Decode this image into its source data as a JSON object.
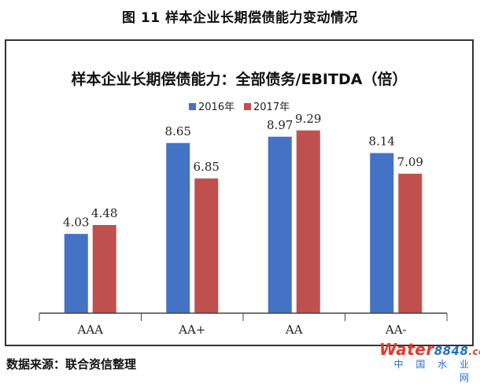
{
  "figure_title": "图 11    样本企业长期偿债能力变动情况",
  "source": "数据来源：联合资信整理",
  "watermark": {
    "brand": "Water",
    "digits": "8848",
    "suffix": ".com",
    "sub": "中 国 水 业 网"
  },
  "chart_data": {
    "type": "bar",
    "title": "样本企业长期偿债能力：全部债务/EBITDA（倍）",
    "categories": [
      "AAA",
      "AA+",
      "AA",
      "AA-"
    ],
    "series": [
      {
        "name": "2016年",
        "color": "#4472c4",
        "values": [
          4.03,
          8.65,
          8.97,
          8.14
        ]
      },
      {
        "name": "2017年",
        "color": "#c0504d",
        "values": [
          4.48,
          6.85,
          9.29,
          7.09
        ]
      }
    ],
    "ylim": [
      0,
      10
    ],
    "legend_position": "top",
    "grid": false
  }
}
